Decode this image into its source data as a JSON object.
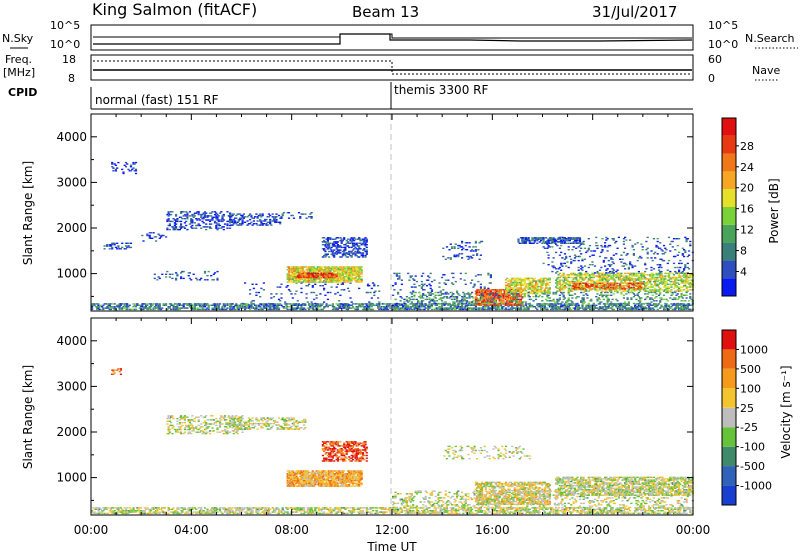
{
  "header": {
    "station": "King Salmon (fitACF)",
    "beam": "Beam 13",
    "date": "31/Jul/2017"
  },
  "strip_panels": {
    "nsky_label": "N.Sky",
    "nsky_ticks": [
      "10^5",
      "10^0"
    ],
    "nsearch_label": "N.Search",
    "nsearch_ticks": [
      "10^5",
      "10^0"
    ],
    "freq_label": "Freq.",
    "freq_unit": "[MHz]",
    "freq_ticks": [
      "18",
      "8"
    ],
    "nave_label": "Nave",
    "nave_ticks": [
      "60",
      "0"
    ],
    "cpid_label": "CPID",
    "cpid_segments": [
      {
        "label": "normal (fast) 151 RF",
        "start_hour": 0,
        "end_hour": 12
      },
      {
        "label": "themis 3300 RF",
        "start_hour": 12,
        "end_hour": 24
      }
    ]
  },
  "chart_data": [
    {
      "type": "heatmap",
      "name": "power",
      "ylabel": "Slant Range [km]",
      "yticks": [
        "1000",
        "2000",
        "3000",
        "4000"
      ],
      "ylim": [
        180,
        4500
      ],
      "xlim": [
        0,
        24
      ],
      "colorbar_label": "Power [dB]",
      "colorbar_ticks": [
        "4",
        "8",
        "12",
        "16",
        "20",
        "24",
        "28"
      ],
      "colorbar_colors": [
        "#0a1bf0",
        "#2f4fbf",
        "#3a7f7a",
        "#4aa35a",
        "#7bd13a",
        "#e6e02a",
        "#f5a623",
        "#f07818",
        "#e83a12",
        "#e01010"
      ],
      "scatter_regions": [
        {
          "t": [
            0.0,
            24.0
          ],
          "r": [
            200,
            330
          ],
          "level": 0.25,
          "density": 0.55
        },
        {
          "t": [
            0.5,
            1.6
          ],
          "r": [
            1530,
            1680
          ],
          "level": 0.1,
          "density": 0.3
        },
        {
          "t": [
            0.8,
            1.8
          ],
          "r": [
            3180,
            3450
          ],
          "level": 0.1,
          "density": 0.2
        },
        {
          "t": [
            2.0,
            3.0
          ],
          "r": [
            1700,
            1900
          ],
          "level": 0.1,
          "density": 0.15
        },
        {
          "t": [
            3.0,
            5.5
          ],
          "r": [
            1950,
            2350
          ],
          "level": 0.1,
          "density": 0.3
        },
        {
          "t": [
            5.5,
            7.5
          ],
          "r": [
            2050,
            2300
          ],
          "level": 0.12,
          "density": 0.3
        },
        {
          "t": [
            7.5,
            8.8
          ],
          "r": [
            2200,
            2350
          ],
          "level": 0.12,
          "density": 0.2
        },
        {
          "t": [
            2.5,
            5.0
          ],
          "r": [
            850,
            1050
          ],
          "level": 0.15,
          "density": 0.12
        },
        {
          "t": [
            6.0,
            11.5
          ],
          "r": [
            300,
            800
          ],
          "level": 0.12,
          "density": 0.05
        },
        {
          "t": [
            7.8,
            10.8
          ],
          "r": [
            800,
            1150
          ],
          "level": 0.55,
          "density": 0.75
        },
        {
          "t": [
            8.2,
            9.8
          ],
          "r": [
            900,
            1000
          ],
          "level": 0.88,
          "density": 0.65
        },
        {
          "t": [
            9.2,
            11.0
          ],
          "r": [
            1350,
            1800
          ],
          "level": 0.12,
          "density": 0.45
        },
        {
          "t": [
            12.0,
            16.0
          ],
          "r": [
            300,
            1000
          ],
          "level": 0.15,
          "density": 0.08
        },
        {
          "t": [
            14.0,
            15.6
          ],
          "r": [
            1300,
            1700
          ],
          "level": 0.15,
          "density": 0.15
        },
        {
          "t": [
            15.3,
            17.2
          ],
          "r": [
            300,
            650
          ],
          "level": 0.82,
          "density": 0.7
        },
        {
          "t": [
            16.5,
            18.3
          ],
          "r": [
            550,
            900
          ],
          "level": 0.55,
          "density": 0.55
        },
        {
          "t": [
            17.0,
            19.5
          ],
          "r": [
            1650,
            1780
          ],
          "level": 0.15,
          "density": 0.6
        },
        {
          "t": [
            18.5,
            24.0
          ],
          "r": [
            600,
            1000
          ],
          "level": 0.5,
          "density": 0.5
        },
        {
          "t": [
            19.2,
            22.0
          ],
          "r": [
            650,
            800
          ],
          "level": 0.8,
          "density": 0.45
        },
        {
          "t": [
            18.0,
            24.0
          ],
          "r": [
            1000,
            1800
          ],
          "level": 0.15,
          "density": 0.1
        },
        {
          "t": [
            12.5,
            24.0
          ],
          "r": [
            330,
            600
          ],
          "level": 0.3,
          "density": 0.2
        }
      ]
    },
    {
      "type": "heatmap",
      "name": "velocity",
      "ylabel": "Slant Range [km]",
      "xlabel": "Time UT",
      "yticks": [
        "1000",
        "2000",
        "3000",
        "4000"
      ],
      "ylim": [
        180,
        4500
      ],
      "xlim": [
        0,
        24
      ],
      "xticks": [
        "00:00",
        "04:00",
        "08:00",
        "12:00",
        "16:00",
        "20:00",
        "00:00"
      ],
      "colorbar_label": "Velocity [m s⁻¹]",
      "colorbar_ticks": [
        "1000",
        "500",
        "100",
        "25",
        "-25",
        "-100",
        "-500",
        "-1000"
      ],
      "colorbar_colors": [
        "#1a3fd0",
        "#2f62b8",
        "#3f8a6a",
        "#66c23a",
        "#bdbdbd",
        "#f4c430",
        "#f59a1a",
        "#ef6a15",
        "#e01010"
      ],
      "scatter_regions": [
        {
          "t": [
            0.0,
            24.0
          ],
          "r": [
            200,
            330
          ],
          "level": 0.5,
          "density": 0.5
        },
        {
          "t": [
            0.8,
            1.2
          ],
          "r": [
            3250,
            3400
          ],
          "level": 0.85,
          "density": 0.4
        },
        {
          "t": [
            3.0,
            6.0
          ],
          "r": [
            1950,
            2350
          ],
          "level": 0.5,
          "density": 0.3
        },
        {
          "t": [
            5.5,
            8.5
          ],
          "r": [
            2050,
            2300
          ],
          "level": 0.5,
          "density": 0.3
        },
        {
          "t": [
            7.8,
            10.8
          ],
          "r": [
            800,
            1150
          ],
          "level": 0.68,
          "density": 0.75
        },
        {
          "t": [
            9.2,
            11.0
          ],
          "r": [
            1350,
            1800
          ],
          "level": 0.9,
          "density": 0.5
        },
        {
          "t": [
            12.0,
            24.0
          ],
          "r": [
            330,
            700
          ],
          "level": 0.5,
          "density": 0.2
        },
        {
          "t": [
            15.3,
            18.3
          ],
          "r": [
            400,
            900
          ],
          "level": 0.55,
          "density": 0.55
        },
        {
          "t": [
            14.0,
            17.5
          ],
          "r": [
            1400,
            1700
          ],
          "level": 0.5,
          "density": 0.12
        },
        {
          "t": [
            18.5,
            24.0
          ],
          "r": [
            600,
            1000
          ],
          "level": 0.5,
          "density": 0.55
        }
      ]
    }
  ],
  "colors": {
    "divider": "#bfbfbf",
    "scan_line": "#000000"
  }
}
